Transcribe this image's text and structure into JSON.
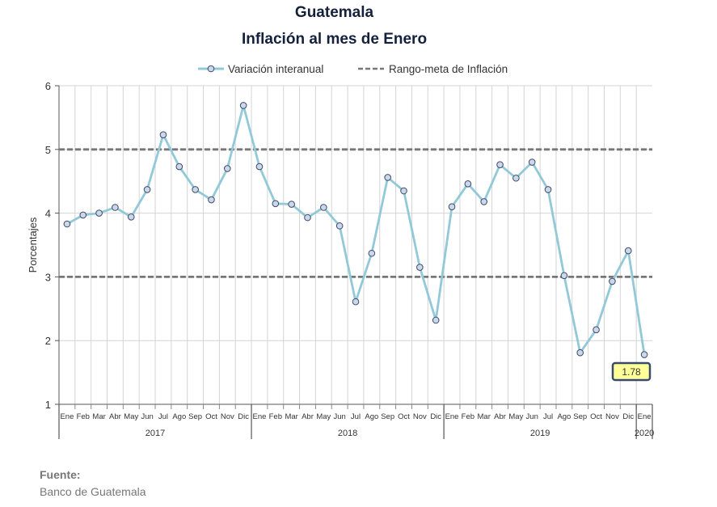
{
  "title": "Guatemala",
  "subtitle": "Inflación al mes de Enero",
  "source": {
    "label": "Fuente:",
    "value": "Banco de Guatemala"
  },
  "chart_data": {
    "type": "line",
    "ylabel": "Porcentajes",
    "ylim": [
      1,
      6
    ],
    "yticks": [
      1,
      2,
      3,
      4,
      5,
      6
    ],
    "grid": true,
    "legend_position": "top",
    "month_labels": [
      "Ene",
      "Feb",
      "Mar",
      "Abr",
      "May",
      "Jun",
      "Jul",
      "Ago",
      "Sep",
      "Oct",
      "Nov",
      "Dic",
      "Ene",
      "Feb",
      "Mar",
      "Abr",
      "May",
      "Jun",
      "Jul",
      "Ago",
      "Sep",
      "Oct",
      "Nov",
      "Dic",
      "Ene",
      "Feb",
      "Mar",
      "Abr",
      "May",
      "Jun",
      "Jul",
      "Ago",
      "Sep",
      "Oct",
      "Nov",
      "Dic",
      "Ene"
    ],
    "year_groups": [
      {
        "label": "2017",
        "start": 0,
        "count": 12
      },
      {
        "label": "2018",
        "start": 12,
        "count": 12
      },
      {
        "label": "2019",
        "start": 24,
        "count": 12
      },
      {
        "label": "2020",
        "start": 36,
        "count": 1
      }
    ],
    "series": [
      {
        "name": "Variación interanual",
        "color": "#92c9d8",
        "marker_fill": "#cdd7ea",
        "values": [
          3.83,
          3.97,
          4.0,
          4.09,
          3.94,
          4.37,
          5.23,
          4.73,
          4.37,
          4.21,
          4.7,
          5.69,
          4.73,
          4.15,
          4.14,
          3.93,
          4.09,
          3.8,
          2.61,
          3.37,
          4.56,
          4.35,
          3.15,
          2.32,
          4.1,
          4.46,
          4.18,
          4.76,
          4.55,
          4.8,
          4.37,
          3.02,
          1.81,
          2.17,
          2.93,
          3.41,
          1.78
        ]
      }
    ],
    "target_range": {
      "name": "Rango-meta de Inflación",
      "lower": 3,
      "upper": 5,
      "color": "#777777"
    },
    "callout": "1.78"
  }
}
